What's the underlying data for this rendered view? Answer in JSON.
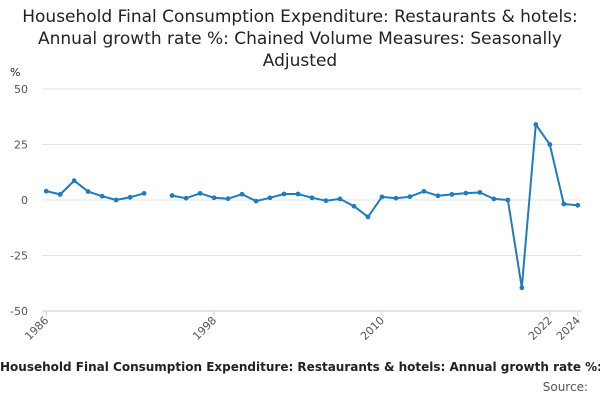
{
  "chart_data": {
    "type": "line",
    "title": "Household Final Consumption Expenditure: Restaurants & hotels: Annual growth rate %: Chained Volume Measures: Seasonally Adjusted",
    "ylabel": "%",
    "ylim": [
      -50,
      50
    ],
    "yticks": [
      "50",
      "25",
      "0",
      "-25",
      "-50"
    ],
    "xticks": [
      "1986",
      "1998",
      "2010",
      "2022",
      "2024"
    ],
    "grid": true,
    "legend_position": "bottom",
    "color": "#1f7cc1",
    "series": [
      {
        "name": "Household Final Consumption Expenditure: Restaurants & hotels: Annual growth rate %: Chained Volume Measures: Seasonally Adjusted",
        "points": [
          {
            "x": 1986,
            "y": 4
          },
          {
            "x": 1987,
            "y": 2.5
          },
          {
            "x": 1988,
            "y": 8.7
          },
          {
            "x": 1989,
            "y": 3.8
          },
          {
            "x": 1990,
            "y": 1.7
          },
          {
            "x": 1991,
            "y": 0
          },
          {
            "x": 1992,
            "y": 1.2
          },
          {
            "x": 1993,
            "y": 3
          },
          {
            "x": 1994,
            "y": null
          },
          {
            "x": 1995,
            "y": 2
          },
          {
            "x": 1996,
            "y": 0.8
          },
          {
            "x": 1997,
            "y": 3
          },
          {
            "x": 1998,
            "y": 1
          },
          {
            "x": 1999,
            "y": 0.6
          },
          {
            "x": 2000,
            "y": 2.6
          },
          {
            "x": 2001,
            "y": -0.5
          },
          {
            "x": 2002,
            "y": 1
          },
          {
            "x": 2003,
            "y": 2.7
          },
          {
            "x": 2004,
            "y": 2.7
          },
          {
            "x": 2005,
            "y": 1
          },
          {
            "x": 2006,
            "y": -0.3
          },
          {
            "x": 2007,
            "y": 0.5
          },
          {
            "x": 2008,
            "y": -2.8
          },
          {
            "x": 2009,
            "y": -7.6
          },
          {
            "x": 2010,
            "y": 1.4
          },
          {
            "x": 2011,
            "y": 0.8
          },
          {
            "x": 2012,
            "y": 1.5
          },
          {
            "x": 2013,
            "y": 3.9
          },
          {
            "x": 2014,
            "y": 1.9
          },
          {
            "x": 2015,
            "y": 2.5
          },
          {
            "x": 2016,
            "y": 3.1
          },
          {
            "x": 2017,
            "y": 3.4
          },
          {
            "x": 2018,
            "y": 0.5
          },
          {
            "x": 2019,
            "y": 0
          },
          {
            "x": 2020,
            "y": -39.5
          },
          {
            "x": 2021,
            "y": 34
          },
          {
            "x": 2022,
            "y": 25
          },
          {
            "x": 2023,
            "y": -1.8
          },
          {
            "x": 2024,
            "y": -2.4
          }
        ]
      }
    ],
    "legend_text": "Household Final Consumption Expenditure: Restaurants & hotels: Annual growth rate %: Chained Volume Measures: Seasonally Adjusted",
    "source": "Source:"
  }
}
